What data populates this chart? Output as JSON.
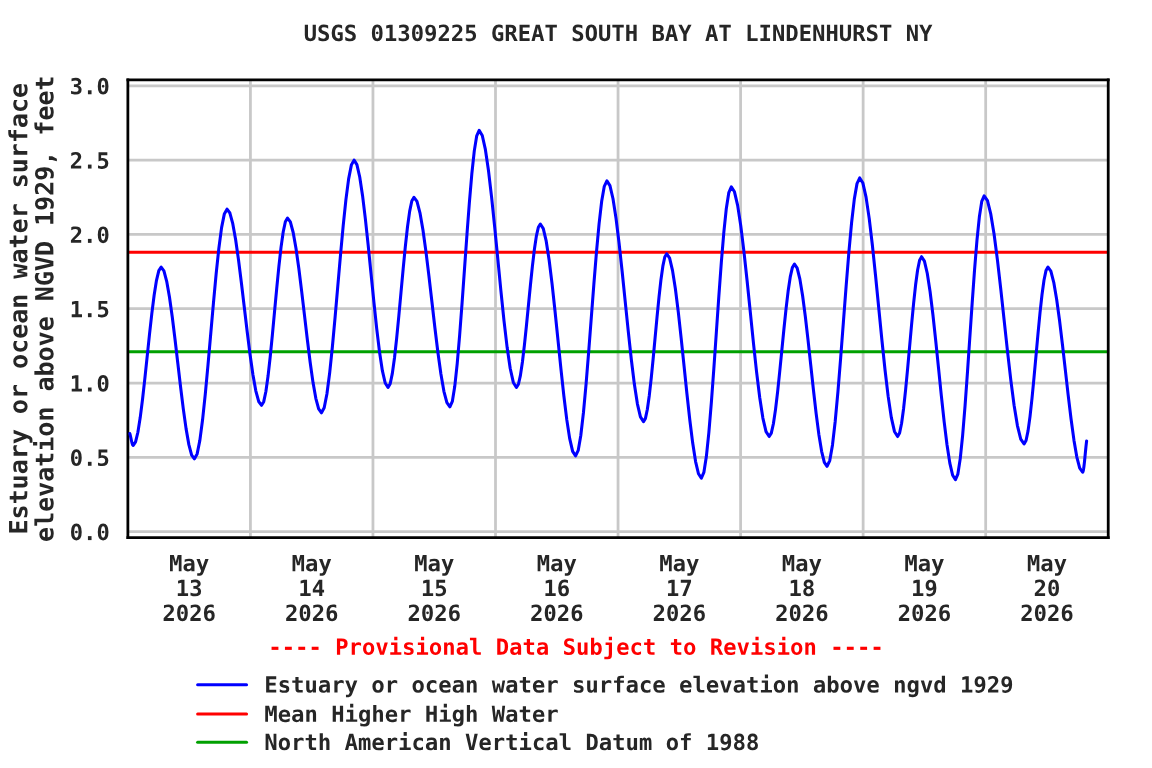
{
  "chart_data": {
    "type": "line",
    "title": "USGS 01309225 GREAT SOUTH BAY AT LINDENHURST NY",
    "ylabel": "Estuary or ocean water surface\nelevation above NGVD 1929, feet",
    "annotations": [
      "---- Provisional Data Subject to Revision ----"
    ],
    "xlim": [
      "2026-05-13T00:00",
      "2026-05-21T00:00"
    ],
    "xticks": [
      {
        "value": "2026-05-13T12:00",
        "label": "May\n13\n2026"
      },
      {
        "value": "2026-05-14T12:00",
        "label": "May\n14\n2026"
      },
      {
        "value": "2026-05-15T12:00",
        "label": "May\n15\n2026"
      },
      {
        "value": "2026-05-16T12:00",
        "label": "May\n16\n2026"
      },
      {
        "value": "2026-05-17T12:00",
        "label": "May\n17\n2026"
      },
      {
        "value": "2026-05-18T12:00",
        "label": "May\n18\n2026"
      },
      {
        "value": "2026-05-19T12:00",
        "label": "May\n19\n2026"
      },
      {
        "value": "2026-05-20T12:00",
        "label": "May\n20\n2026"
      }
    ],
    "ylim": [
      -0.04,
      3.04
    ],
    "yticks": [
      {
        "value": 0,
        "label": "0.0"
      },
      {
        "value": 0.5,
        "label": "0.5"
      },
      {
        "value": 1,
        "label": "1.0"
      },
      {
        "value": 1.5,
        "label": "1.5"
      },
      {
        "value": 2,
        "label": "2.0"
      },
      {
        "value": 2.5,
        "label": "2.5"
      },
      {
        "value": 3,
        "label": "3.0"
      }
    ],
    "grid": true,
    "legend": "bottom",
    "marker": "none",
    "line_style": "solid",
    "series": [
      {
        "name": "Estuary or ocean water surface elevation above ngvd 1929",
        "color": "#0000ff",
        "x": [
          "2026-05-13T00:23",
          "2026-05-13T01:03",
          "2026-05-13T06:31",
          "2026-05-13T13:02",
          "2026-05-13T19:25",
          "2026-05-14T02:11",
          "2026-05-14T07:16",
          "2026-05-14T13:55",
          "2026-05-14T20:18",
          "2026-05-15T02:57",
          "2026-05-15T08:02",
          "2026-05-15T15:04",
          "2026-05-15T20:48",
          "2026-05-16T04:06",
          "2026-05-16T08:47",
          "2026-05-16T15:41",
          "2026-05-16T21:49",
          "2026-05-17T04:59",
          "2026-05-17T09:32",
          "2026-05-17T16:19",
          "2026-05-17T22:11",
          "2026-05-18T05:36",
          "2026-05-18T10:33",
          "2026-05-18T16:56",
          "2026-05-18T23:20",
          "2026-05-19T06:45",
          "2026-05-19T11:27",
          "2026-05-19T18:05",
          "2026-05-19T23:42",
          "2026-05-20T07:31",
          "2026-05-20T12:12",
          "2026-05-20T18:59",
          "2026-05-20T19:46"
        ],
        "values": [
          0.66,
          0.58,
          1.78,
          0.49,
          2.17,
          0.85,
          2.11,
          0.8,
          2.5,
          0.97,
          2.25,
          0.84,
          2.7,
          0.97,
          2.07,
          0.51,
          2.36,
          0.74,
          1.87,
          0.36,
          2.32,
          0.64,
          1.8,
          0.44,
          2.38,
          0.64,
          1.85,
          0.35,
          2.26,
          0.59,
          1.78,
          0.4,
          0.61
        ]
      }
    ],
    "ref_lines": [
      {
        "axis": "y",
        "value": 1.88,
        "label": "Mean Higher High Water",
        "color": "#ff0000",
        "line_style": "solid"
      },
      {
        "axis": "y",
        "value": 1.21,
        "label": "North American Vertical Datum of 1988",
        "color": "#00a000",
        "line_style": "solid"
      }
    ]
  }
}
